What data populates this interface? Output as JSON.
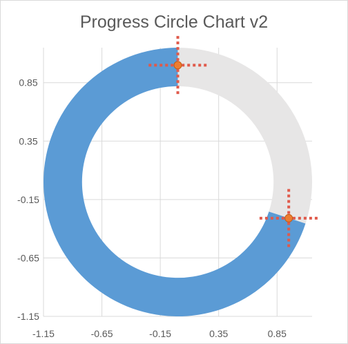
{
  "chart_data": {
    "type": "scatter",
    "title": "Progress Circle Chart v2",
    "xlabel": "",
    "ylabel": "",
    "xlim": [
      -1.15,
      1.15
    ],
    "ylim": [
      -1.15,
      1.15
    ],
    "x_ticks": [
      "-1.15",
      "-0.65",
      "-0.15",
      "0.35",
      "0.85"
    ],
    "y_ticks": [
      "0.85",
      "0.35",
      "-0.15",
      "-0.65",
      "-1.15"
    ],
    "grid": true,
    "progress_ring": {
      "outer_radius": 1.15,
      "inner_radius": 0.82,
      "progress_fraction": 0.7,
      "progress_color": "#5b9bd5",
      "remaining_color": "#e7e6e6"
    },
    "series": [
      {
        "points": [
          {
            "x": 0.0,
            "y": 1.0
          },
          {
            "x": 0.95,
            "y": -0.31
          }
        ],
        "marker_color": "#ed7d31",
        "error_bar_color": "#e05a4b",
        "x_error": 0.25,
        "y_error": 0.25
      }
    ]
  }
}
